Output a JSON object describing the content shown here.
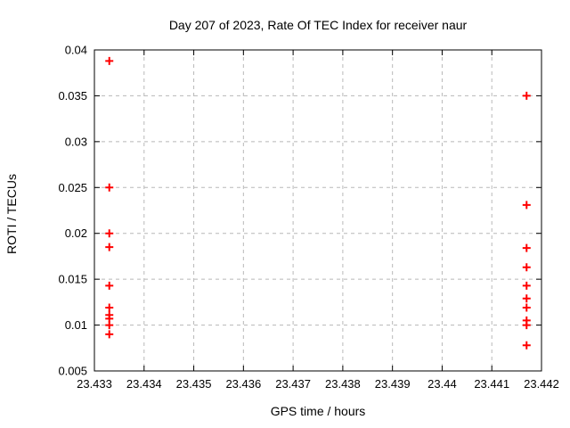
{
  "window": {
    "background_color": "#ffffff"
  },
  "chart_data": {
    "type": "scatter",
    "title": "Day 207 of 2023, Rate Of TEC Index for receiver naur",
    "xlabel": "GPS time / hours",
    "ylabel": "ROTI / TECUs",
    "xlim": [
      23.433,
      23.442
    ],
    "ylim": [
      0.005,
      0.04
    ],
    "xticks": [
      23.433,
      23.434,
      23.435,
      23.436,
      23.437,
      23.438,
      23.439,
      23.44,
      23.441,
      23.442
    ],
    "xtick_labels": [
      "23.433",
      "23.434",
      "23.435",
      "23.436",
      "23.437",
      "23.438",
      "23.439",
      "23.44",
      "23.441",
      "23.442"
    ],
    "yticks": [
      0.005,
      0.01,
      0.015,
      0.02,
      0.025,
      0.03,
      0.035,
      0.04
    ],
    "ytick_labels": [
      "0.005",
      "0.01",
      "0.015",
      "0.02",
      "0.025",
      "0.03",
      "0.035",
      "0.04"
    ],
    "grid": true,
    "grid_color": "#b8b8b8",
    "grid_dash": "4,4",
    "border_color": "#000000",
    "legend": "none",
    "marker": "plus",
    "marker_color": "#ff0000",
    "series": [
      {
        "name": "roti-points",
        "points": [
          [
            23.4333,
            0.0388
          ],
          [
            23.4333,
            0.025
          ],
          [
            23.4333,
            0.02
          ],
          [
            23.4333,
            0.0185
          ],
          [
            23.4333,
            0.0143
          ],
          [
            23.4333,
            0.0119
          ],
          [
            23.4333,
            0.0111
          ],
          [
            23.4333,
            0.0107
          ],
          [
            23.4333,
            0.01
          ],
          [
            23.4333,
            0.009
          ],
          [
            23.4417,
            0.035
          ],
          [
            23.4417,
            0.0231
          ],
          [
            23.4417,
            0.0184
          ],
          [
            23.4417,
            0.0163
          ],
          [
            23.4417,
            0.0143
          ],
          [
            23.4417,
            0.0129
          ],
          [
            23.4417,
            0.0119
          ],
          [
            23.4417,
            0.0105
          ],
          [
            23.4417,
            0.01
          ],
          [
            23.4417,
            0.0078
          ]
        ]
      }
    ]
  }
}
